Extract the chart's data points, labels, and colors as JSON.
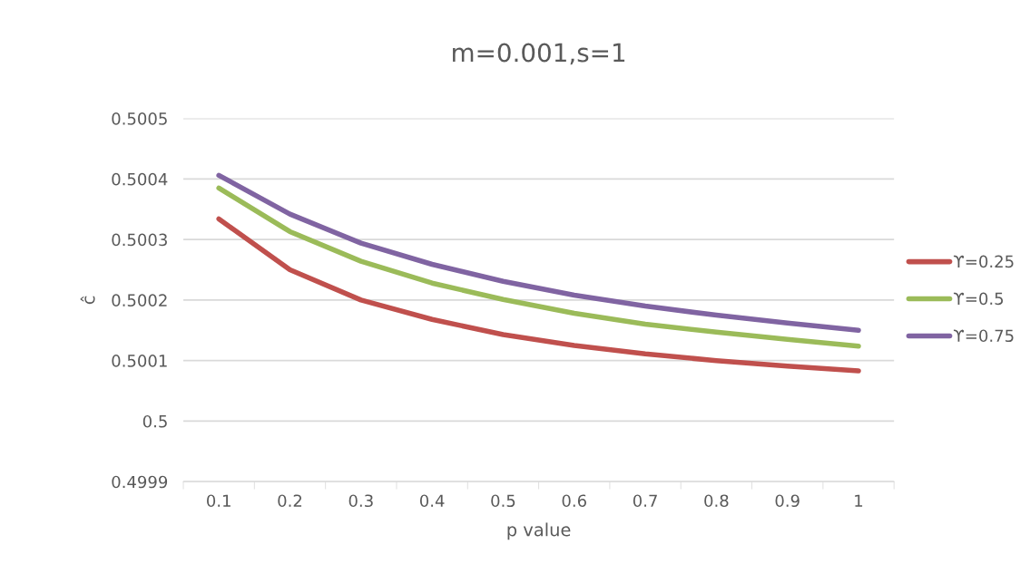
{
  "chart_data": {
    "type": "line",
    "title": "m=0.001,s=1",
    "xlabel": "p value",
    "ylabel": "ĉ",
    "categories": [
      "0.1",
      "0.2",
      "0.3",
      "0.4",
      "0.5",
      "0.6",
      "0.7",
      "0.8",
      "0.9",
      "1"
    ],
    "series": [
      {
        "name": "ϒ=0.25",
        "color": "#c0504d",
        "values": [
          0.500334,
          0.50025,
          0.5002,
          0.500168,
          0.500143,
          0.500125,
          0.500111,
          0.5001,
          0.500091,
          0.500083
        ]
      },
      {
        "name": "ϒ=0.5",
        "color": "#9bbb59",
        "values": [
          0.500385,
          0.500313,
          0.500264,
          0.500228,
          0.500201,
          0.500178,
          0.50016,
          0.500147,
          0.500135,
          0.500124
        ]
      },
      {
        "name": "ϒ=0.75",
        "color": "#8064a2",
        "values": [
          0.500406,
          0.500342,
          0.500294,
          0.500259,
          0.500231,
          0.500208,
          0.50019,
          0.500175,
          0.500162,
          0.50015
        ]
      }
    ],
    "ylim": [
      0.4999,
      0.5005
    ],
    "yticks": [
      0.4999,
      0.5,
      0.5001,
      0.5002,
      0.5003,
      0.5004,
      0.5005
    ],
    "grid": "y",
    "legend": "right",
    "marker": "none",
    "line_style": "solid"
  }
}
